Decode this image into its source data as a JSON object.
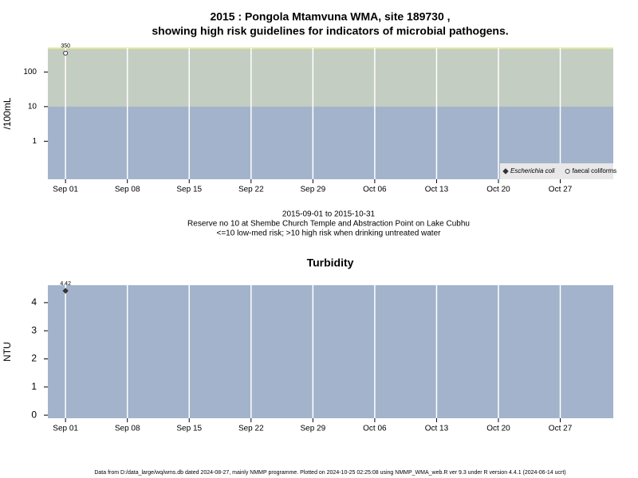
{
  "chart_data": [
    {
      "type": "scatter",
      "title": [
        "2015 : Pongola Mtamvuna WMA, site 189730 ,",
        "showing high risk guidelines for indicators of microbial pathogens."
      ],
      "y_label": "/100mL",
      "log_y": true,
      "x": [
        "2015-09-01"
      ],
      "xlim": [
        "2015-08-30",
        "2015-11-02"
      ],
      "xticks": [
        {
          "value": "2015-09-01",
          "label": "Sep 01"
        },
        {
          "value": "2015-09-08",
          "label": "Sep 08"
        },
        {
          "value": "2015-09-15",
          "label": "Sep 15"
        },
        {
          "value": "2015-09-22",
          "label": "Sep 22"
        },
        {
          "value": "2015-09-29",
          "label": "Sep 29"
        },
        {
          "value": "2015-10-06",
          "label": "Oct 06"
        },
        {
          "value": "2015-10-13",
          "label": "Oct 13"
        },
        {
          "value": "2015-10-20",
          "label": "Oct 20"
        },
        {
          "value": "2015-10-27",
          "label": "Oct 27"
        }
      ],
      "ylim": [
        0.08,
        500
      ],
      "yticks": [
        1,
        10,
        100
      ],
      "threshold": 10,
      "low_color": "#a3b3cb",
      "high_color": "#c4cdc1",
      "legend": "bottom-right",
      "series": [
        {
          "name": "Escherichia coli",
          "color": "#333333",
          "marker": "diamond",
          "values": [
            null
          ]
        },
        {
          "name": "faecal coliforms",
          "color": "#333333",
          "marker": "circle",
          "values": [
            350
          ]
        }
      ]
    },
    {
      "type": "scatter",
      "title": [
        "Turbidity"
      ],
      "y_label": "NTU",
      "log_y": false,
      "x": [
        "2015-09-01"
      ],
      "xlim": [
        "2015-08-30",
        "2015-11-02"
      ],
      "xticks": [
        {
          "value": "2015-09-01",
          "label": "Sep 01"
        },
        {
          "value": "2015-09-08",
          "label": "Sep 08"
        },
        {
          "value": "2015-09-15",
          "label": "Sep 15"
        },
        {
          "value": "2015-09-22",
          "label": "Sep 22"
        },
        {
          "value": "2015-09-29",
          "label": "Sep 29"
        },
        {
          "value": "2015-10-06",
          "label": "Oct 06"
        },
        {
          "value": "2015-10-13",
          "label": "Oct 13"
        },
        {
          "value": "2015-10-20",
          "label": "Oct 20"
        },
        {
          "value": "2015-10-27",
          "label": "Oct 27"
        }
      ],
      "ylim": [
        -0.11,
        4.62
      ],
      "yticks": [
        0,
        1,
        2,
        3,
        4
      ],
      "low_color": "#a3b3cb",
      "series": [
        {
          "color": "#333333",
          "marker": "diamond",
          "values": [
            4.42
          ]
        }
      ]
    }
  ],
  "caption": [
    "2015-09-01 to 2015-10-31",
    "Reserve no 10 at Shembe Church Temple and Abstraction Point on Lake Cubhu",
    "<=10 low-med risk; >10 high risk when drinking untreated water"
  ],
  "footer": "Data from D:/data_large/wq/wms.db dated 2024-08-27, mainly NMMP programme. Plotted on 2024-10-25 02:25:08 using NMMP_WMA_web.R ver 9.3 under R version 4.4.1 (2024-06-14 ucrt)"
}
